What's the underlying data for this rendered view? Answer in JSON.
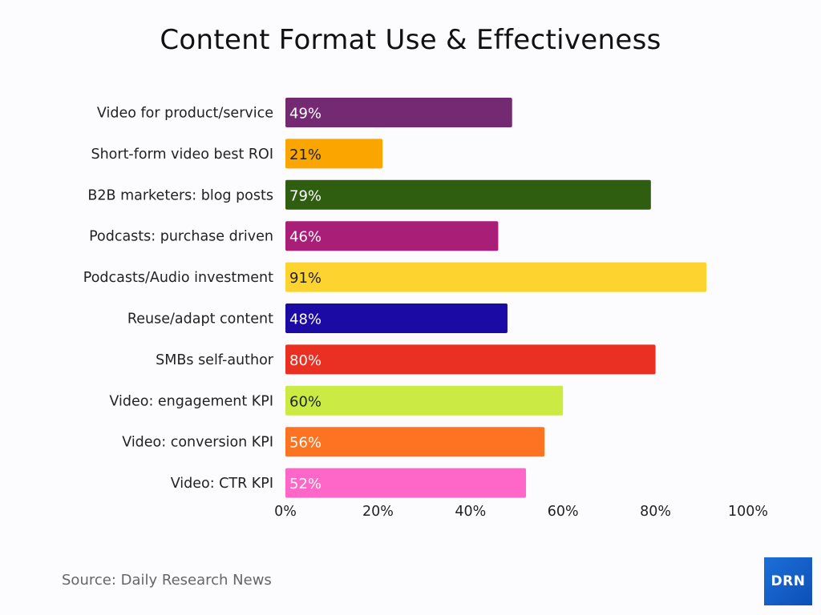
{
  "chart_data": {
    "type": "bar",
    "orientation": "horizontal",
    "title": "Content Format Use & Effectiveness",
    "categories": [
      "Video for product/service",
      "Short-form video best ROI",
      "B2B marketers: blog posts",
      "Podcasts: purchase driven",
      "Podcasts/Audio investment",
      "Reuse/adapt content",
      "SMBs self-author",
      "Video: engagement KPI",
      "Video: conversion KPI",
      "Video: CTR KPI"
    ],
    "values": [
      49,
      21,
      79,
      46,
      91,
      48,
      80,
      60,
      56,
      52
    ],
    "data_labels": [
      "49%",
      "21%",
      "79%",
      "46%",
      "91%",
      "48%",
      "80%",
      "60%",
      "56%",
      "52%"
    ],
    "colors": [
      "#742a72",
      "#fba500",
      "#2f5e10",
      "#a91f78",
      "#fdd42f",
      "#1c0aa5",
      "#e93023",
      "#cbeb44",
      "#fd7321",
      "#fe66c8"
    ],
    "label_colors": [
      "#ffffff",
      "#222222",
      "#ffffff",
      "#ffffff",
      "#222222",
      "#ffffff",
      "#ffffff",
      "#222222",
      "#ffffff",
      "#ffffff"
    ],
    "xlim": [
      0,
      100
    ],
    "xticks": [
      "0%",
      "20%",
      "40%",
      "60%",
      "80%",
      "100%"
    ],
    "xtick_values": [
      0,
      20,
      40,
      60,
      80,
      100
    ],
    "grid": false,
    "legend": "none"
  },
  "source": "Source: Daily Research News",
  "logo_text": "DRN"
}
